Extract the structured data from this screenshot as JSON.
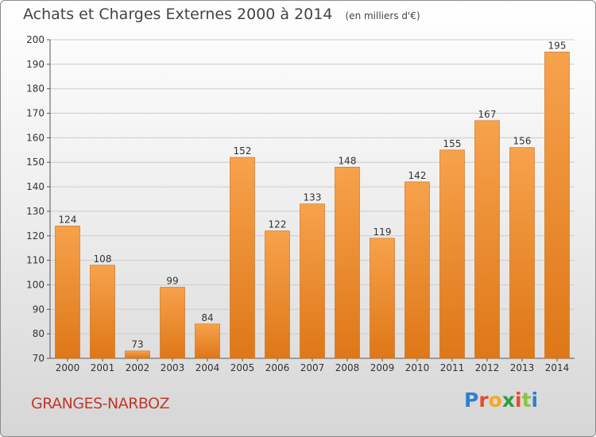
{
  "header": {
    "title": "Achats et Charges Externes 2000 à 2014",
    "subtitle": "(en milliers d'€)"
  },
  "footer": {
    "commune": "GRANGES-NARBOZ",
    "logo_letters": [
      "P",
      "r",
      "o",
      "x",
      "i",
      "t",
      "i"
    ],
    "logo_colors": [
      "#2e7fd0",
      "#e94c2b",
      "#f5a623",
      "#2d9e3a",
      "#e94c2b",
      "#8bc34a",
      "#2e7fd0"
    ]
  },
  "colors": {
    "bar_light": "#f7a24c",
    "bar_dark": "#e07a1c",
    "grid": "#cccccc",
    "commune": "#c0392b"
  },
  "chart_data": {
    "type": "bar",
    "categories": [
      "2000",
      "2001",
      "2002",
      "2003",
      "2004",
      "2005",
      "2006",
      "2007",
      "2008",
      "2009",
      "2010",
      "2011",
      "2012",
      "2013",
      "2014"
    ],
    "values": [
      124,
      108,
      73,
      99,
      84,
      152,
      122,
      133,
      148,
      119,
      142,
      155,
      167,
      156,
      195
    ],
    "title": "Achats et Charges Externes 2000 à 2014",
    "subtitle": "(en milliers d'€)",
    "xlabel": "",
    "ylabel": "",
    "ylim": [
      70,
      200
    ],
    "yticks": [
      70,
      80,
      90,
      100,
      110,
      120,
      130,
      140,
      150,
      160,
      170,
      180,
      190,
      200
    ],
    "grid": true,
    "data_labels": true
  }
}
